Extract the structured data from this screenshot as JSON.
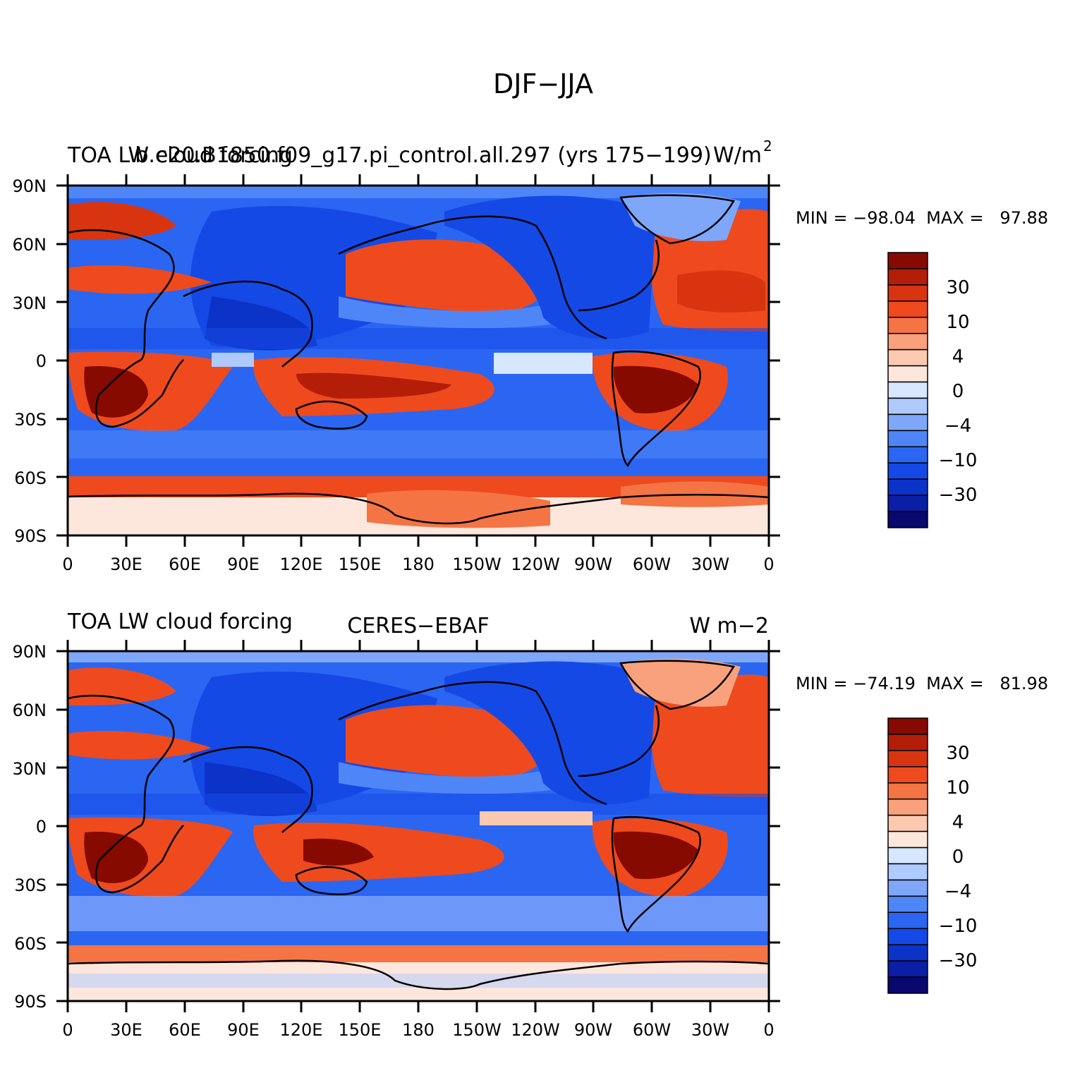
{
  "figure": {
    "title": "DJF−JJA"
  },
  "colors": {
    "scale": [
      "#08086e",
      "#0a1fa6",
      "#0c33c8",
      "#1549e6",
      "#2a66f2",
      "#4f86f7",
      "#7ea7fa",
      "#afcaff",
      "#d6e7ff",
      "#fde7dc",
      "#fbc8b0",
      "#f9a07c",
      "#f47444",
      "#ee4a1e",
      "#d83410",
      "#b41e08",
      "#870a00"
    ]
  },
  "axes": {
    "lat_labels": [
      "90N",
      "60N",
      "30N",
      "0",
      "30S",
      "60S",
      "90S"
    ],
    "lon_labels": [
      "0",
      "30E",
      "60E",
      "90E",
      "120E",
      "150E",
      "180",
      "150W",
      "120W",
      "90W",
      "60W",
      "30W",
      "0"
    ]
  },
  "panels": [
    {
      "title_left": "TOA LW cloud forcing",
      "title_center": "b.e20.B1850.f09_g17.pi_control.all.297 (yrs 175−199)",
      "title_right": "W/m",
      "title_right_sup": "2",
      "stats": "MIN = −98.04  MAX =   97.88",
      "colorbar_labels": [
        "30",
        "10",
        "4",
        "0",
        "−4",
        "−10",
        "−30"
      ]
    },
    {
      "title_left": "TOA LW cloud forcing",
      "title_center": "CERES−EBAF",
      "title_right": "W m−2",
      "title_right_sup": "",
      "stats": "MIN = −74.19  MAX =   81.98",
      "colorbar_labels": [
        "30",
        "10",
        "4",
        "0",
        "−4",
        "−10",
        "−30"
      ]
    }
  ]
}
